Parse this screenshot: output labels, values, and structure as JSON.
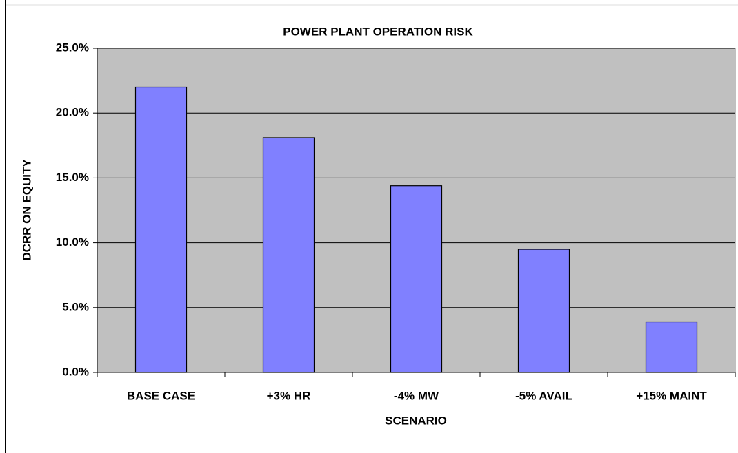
{
  "chart_data": {
    "type": "bar",
    "title": "POWER PLANT OPERATION  RISK",
    "x_label": "SCENARIO",
    "y_label": "DCRR ON EQUITY",
    "categories": [
      "BASE CASE",
      "+3% HR",
      "-4% MW",
      "-5% AVAIL",
      "+15% MAINT"
    ],
    "values": [
      22.0,
      18.1,
      14.4,
      9.5,
      3.9
    ],
    "color": "#8080ff",
    "ylim": [
      0,
      25
    ],
    "yticks": [
      {
        "value": 0,
        "label": "0.0%"
      },
      {
        "value": 5,
        "label": "5.0%"
      },
      {
        "value": 10,
        "label": "10.0%"
      },
      {
        "value": 15,
        "label": "15.0%"
      },
      {
        "value": 20,
        "label": "20.0%"
      },
      {
        "value": 25,
        "label": "25.0%"
      }
    ],
    "grid": true
  }
}
